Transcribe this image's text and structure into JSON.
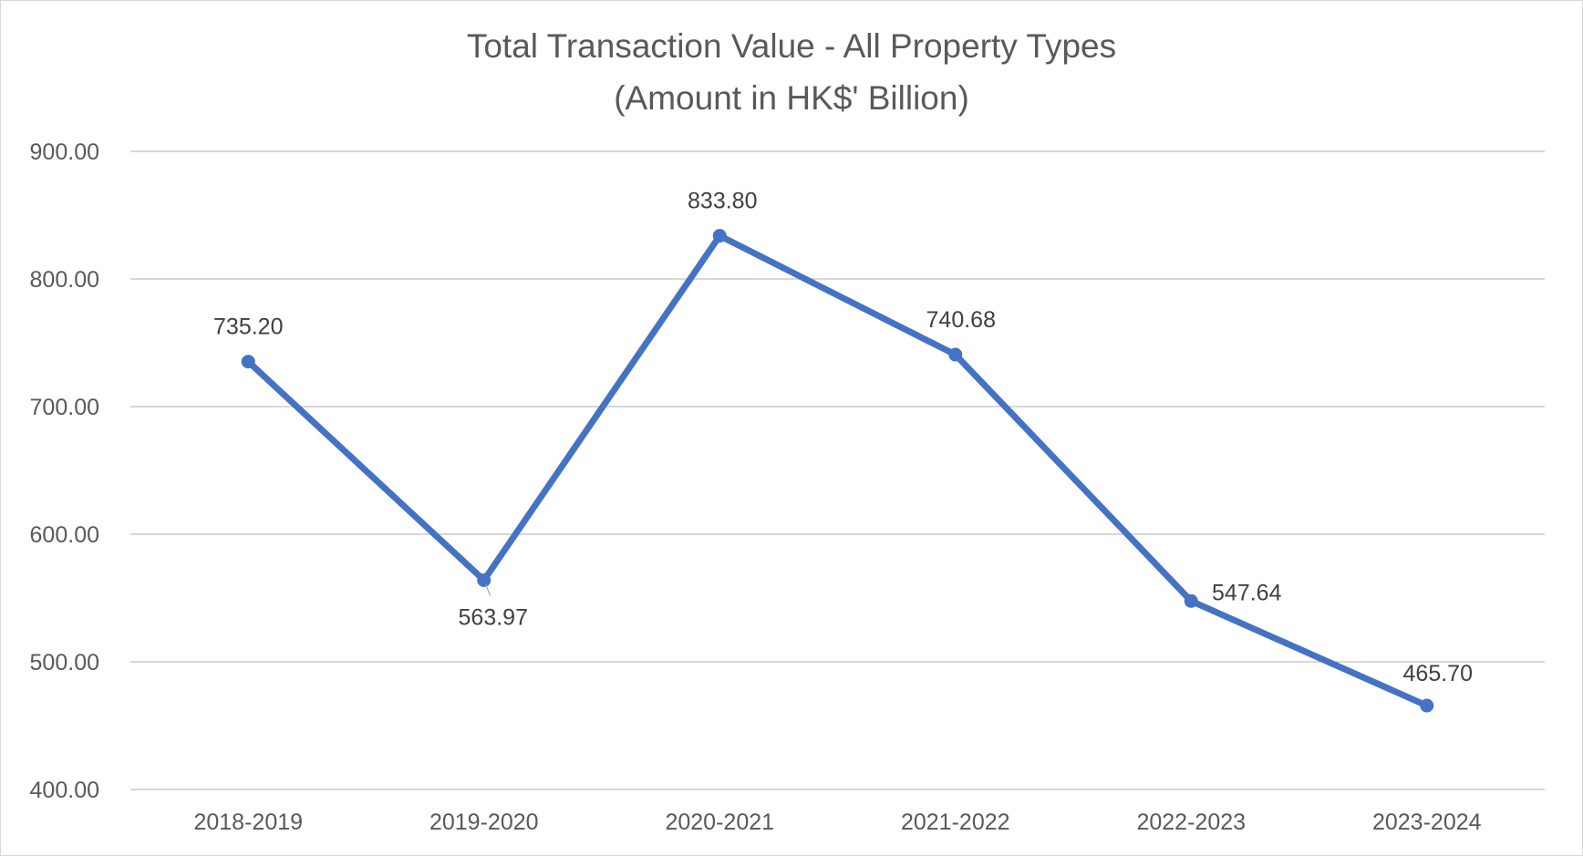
{
  "chart_data": {
    "type": "line",
    "title": "Total Transaction Value - All Property Types",
    "subtitle": "(Amount in HK$' Billion)",
    "xlabel": "",
    "ylabel": "",
    "categories": [
      "2018-2019",
      "2019-2020",
      "2020-2021",
      "2021-2022",
      "2022-2023",
      "2023-2024"
    ],
    "series": [
      {
        "values": [
          735.2,
          563.97,
          833.8,
          740.68,
          547.64,
          465.7
        ],
        "labels": [
          "735.20",
          "563.97",
          "833.80",
          "740.68",
          "547.64",
          "465.70"
        ],
        "color": "#4472c4"
      }
    ],
    "ylim": [
      400,
      900
    ],
    "y_ticks": [
      "400.00",
      "500.00",
      "600.00",
      "700.00",
      "800.00",
      "900.00"
    ],
    "grid": true,
    "legend": "none",
    "gridline_color": "#bfbfbf",
    "text_color": "#595959"
  }
}
